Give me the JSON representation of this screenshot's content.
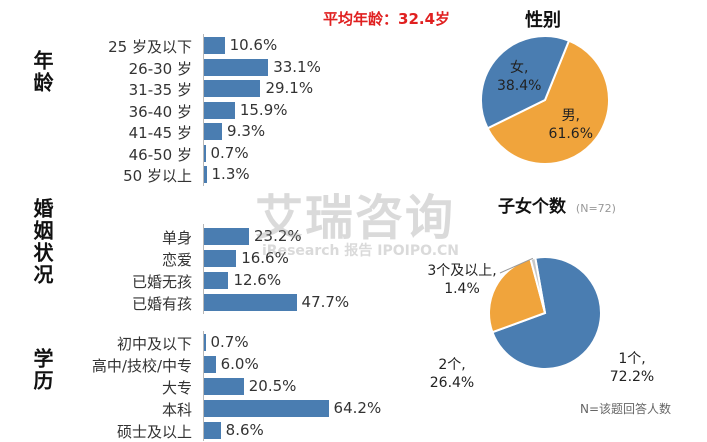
{
  "header": {
    "avg_age": "平均年龄：32.4岁"
  },
  "sections": {
    "age": "年龄",
    "marital": "婚姻状况",
    "education": "学历"
  },
  "chart_data": [
    {
      "type": "bar",
      "orientation": "horizontal",
      "title": "年龄",
      "categories": [
        "25 岁及以下",
        "26-30 岁",
        "31-35 岁",
        "36-40 岁",
        "41-45 岁",
        "46-50 岁",
        "50 岁以上"
      ],
      "values": [
        10.6,
        33.1,
        29.1,
        15.9,
        9.3,
        0.7,
        1.3
      ],
      "labels": [
        "10.6%",
        "33.1%",
        "29.1%",
        "15.9%",
        "9.3%",
        "0.7%",
        "1.3%"
      ],
      "color": "#4a7db1"
    },
    {
      "type": "bar",
      "orientation": "horizontal",
      "title": "婚姻状况",
      "categories": [
        "单身",
        "恋爱",
        "已婚无孩",
        "已婚有孩"
      ],
      "values": [
        23.2,
        16.6,
        12.6,
        47.7
      ],
      "labels": [
        "23.2%",
        "16.6%",
        "12.6%",
        "47.7%"
      ],
      "color": "#4a7db1"
    },
    {
      "type": "bar",
      "orientation": "horizontal",
      "title": "学历",
      "categories": [
        "初中及以下",
        "高中/技校/中专",
        "大专",
        "本科",
        "硕士及以上"
      ],
      "values": [
        0.7,
        6.0,
        20.5,
        64.2,
        8.6
      ],
      "labels": [
        "0.7%",
        "6.0%",
        "20.5%",
        "64.2%",
        "8.6%"
      ],
      "color": "#4a7db1"
    },
    {
      "type": "pie",
      "title": "性别",
      "slices": [
        {
          "name": "男",
          "value": 61.6,
          "label": "61.6%",
          "color": "#f0a43c"
        },
        {
          "name": "女",
          "value": 38.4,
          "label": "38.4%",
          "color": "#4a7db1"
        }
      ]
    },
    {
      "type": "pie",
      "title": "子女个数",
      "subtitle": "(N=72)",
      "slices": [
        {
          "name": "1个",
          "value": 72.2,
          "label": "72.2%",
          "color": "#4a7db1"
        },
        {
          "name": "2个",
          "value": 26.4,
          "label": "26.4%",
          "color": "#f0a43c"
        },
        {
          "name": "3个及以上",
          "value": 1.4,
          "label": "1.4%",
          "color": "#c8c8c8"
        }
      ]
    }
  ],
  "footnote": "N=该题回答人数",
  "watermark": {
    "main": "艾瑞咨询",
    "sub": "iResearch 报告 IPOIPO.CN"
  }
}
